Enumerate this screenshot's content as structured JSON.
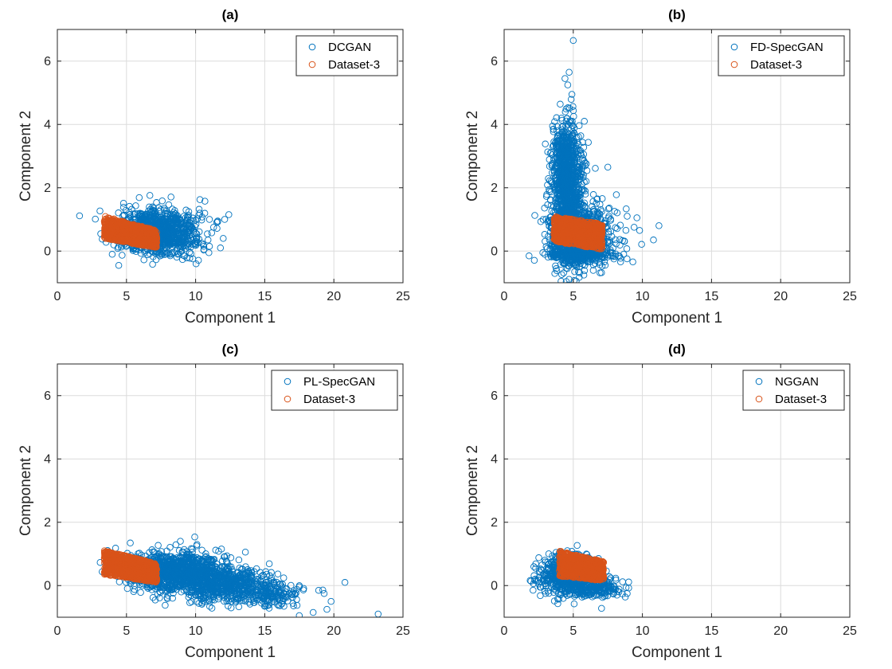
{
  "figure": {
    "colors": {
      "generated": "#0072BD",
      "real": "#D95319",
      "grid": "#DCDCDC",
      "axis": "#262626"
    }
  },
  "chart_data": [
    {
      "type": "scatter",
      "title": "(a)",
      "xlabel": "Component 1",
      "ylabel": "Component 2",
      "xlim": [
        0,
        25
      ],
      "ylim": [
        -1,
        7
      ],
      "xticks": [
        0,
        5,
        10,
        15,
        20,
        25
      ],
      "yticks": [
        0,
        2,
        4,
        6
      ],
      "grid": true,
      "legend_position": "top-right",
      "series": [
        {
          "name": "DCGAN",
          "role": "generated",
          "color": "#0072BD",
          "marker": "open-circle",
          "cloud": [
            {
              "x": 7.2,
              "y": 0.6,
              "sx": 1.4,
              "sy": 0.35,
              "n": 1100
            }
          ],
          "outliers": [
            [
              12.4,
              1.15
            ],
            [
              12.1,
              1.0
            ],
            [
              11.6,
              0.95
            ],
            [
              11.0,
              1.0
            ],
            [
              11.3,
              0.75
            ],
            [
              12.0,
              0.4
            ],
            [
              11.8,
              0.1
            ],
            [
              11.0,
              0.15
            ],
            [
              10.6,
              0.05
            ],
            [
              10.9,
              0.35
            ],
            [
              10.3,
              1.2
            ]
          ]
        },
        {
          "name": "Dataset-3",
          "role": "real",
          "color": "#D95319",
          "marker": "open-circle",
          "band": {
            "x0": 3.4,
            "x1": 7.2,
            "ytop0": 1.1,
            "ytop1": 0.65,
            "ybot0": 0.4,
            "ybot1": 0.1,
            "n": 900
          }
        }
      ]
    },
    {
      "type": "scatter",
      "title": "(b)",
      "xlabel": "Component 1",
      "ylabel": "Component 2",
      "xlim": [
        0,
        25
      ],
      "ylim": [
        -1,
        7
      ],
      "xticks": [
        0,
        5,
        10,
        15,
        20,
        25
      ],
      "yticks": [
        0,
        2,
        4,
        6
      ],
      "grid": true,
      "legend_position": "top-right",
      "series": [
        {
          "name": "FD-SpecGAN",
          "role": "generated",
          "color": "#0072BD",
          "marker": "open-circle",
          "cloud": [
            {
              "x": 4.6,
              "y": 1.6,
              "sx": 0.6,
              "sy": 1.0,
              "n": 900
            },
            {
              "x": 5.6,
              "y": 0.5,
              "sx": 1.1,
              "sy": 0.45,
              "n": 700
            },
            {
              "x": 4.5,
              "y": 3.0,
              "sx": 0.4,
              "sy": 0.6,
              "n": 300
            },
            {
              "x": 5.5,
              "y": -0.1,
              "sx": 1.2,
              "sy": 0.12,
              "n": 300
            }
          ],
          "outliers": [
            [
              5.0,
              6.65
            ],
            [
              4.7,
              5.65
            ],
            [
              4.4,
              5.45
            ],
            [
              4.6,
              5.25
            ],
            [
              4.9,
              4.95
            ],
            [
              5.8,
              4.1
            ],
            [
              7.5,
              2.65
            ],
            [
              9.6,
              1.05
            ],
            [
              9.4,
              0.75
            ],
            [
              11.2,
              0.8
            ],
            [
              10.8,
              0.35
            ],
            [
              9.8,
              0.65
            ],
            [
              8.9,
              1.1
            ]
          ]
        },
        {
          "name": "Dataset-3",
          "role": "real",
          "color": "#D95319",
          "marker": "open-circle",
          "band": {
            "x0": 3.6,
            "x1": 7.1,
            "ytop0": 1.1,
            "ytop1": 0.85,
            "ybot0": 0.3,
            "ybot1": 0.05,
            "n": 900
          }
        }
      ]
    },
    {
      "type": "scatter",
      "title": "(c)",
      "xlabel": "Component 1",
      "ylabel": "Component 2",
      "xlim": [
        0,
        25
      ],
      "ylim": [
        -1,
        7
      ],
      "xticks": [
        0,
        5,
        10,
        15,
        20,
        25
      ],
      "yticks": [
        0,
        2,
        4,
        6
      ],
      "grid": true,
      "legend_position": "top-right",
      "series": [
        {
          "name": "PL-SpecGAN",
          "role": "generated",
          "color": "#0072BD",
          "marker": "open-circle",
          "cloud": [
            {
              "x": 8.5,
              "y": 0.45,
              "sx": 1.8,
              "sy": 0.3,
              "n": 1000
            },
            {
              "x": 12.0,
              "y": 0.05,
              "sx": 1.8,
              "sy": 0.28,
              "n": 600
            },
            {
              "x": 15.5,
              "y": -0.3,
              "sx": 1.2,
              "sy": 0.2,
              "n": 150
            }
          ],
          "outliers": [
            [
              23.2,
              -0.9
            ],
            [
              20.8,
              0.1
            ],
            [
              19.8,
              -0.5
            ],
            [
              19.5,
              -0.75
            ],
            [
              18.5,
              -0.85
            ],
            [
              17.5,
              -0.95
            ],
            [
              18.9,
              -0.15
            ],
            [
              19.3,
              -0.25
            ],
            [
              8.9,
              1.4
            ]
          ]
        },
        {
          "name": "Dataset-3",
          "role": "real",
          "color": "#D95319",
          "marker": "open-circle",
          "band": {
            "x0": 3.4,
            "x1": 7.2,
            "ytop0": 1.1,
            "ytop1": 0.7,
            "ybot0": 0.35,
            "ybot1": 0.1,
            "n": 900
          }
        }
      ]
    },
    {
      "type": "scatter",
      "title": "(d)",
      "xlabel": "Component 1",
      "ylabel": "Component 2",
      "xlim": [
        0,
        25
      ],
      "ylim": [
        -1,
        7
      ],
      "xticks": [
        0,
        5,
        10,
        15,
        20,
        25
      ],
      "yticks": [
        0,
        2,
        4,
        6
      ],
      "grid": true,
      "legend_position": "top-right",
      "series": [
        {
          "name": "NGGAN",
          "role": "generated",
          "color": "#0072BD",
          "marker": "open-circle",
          "cloud": [
            {
              "x": 4.6,
              "y": 0.35,
              "sx": 0.9,
              "sy": 0.3,
              "n": 700
            },
            {
              "x": 6.5,
              "y": -0.05,
              "sx": 0.9,
              "sy": 0.15,
              "n": 200
            }
          ],
          "outliers": [
            [
              2.5,
              0.05
            ],
            [
              2.6,
              -0.05
            ],
            [
              8.9,
              -0.25
            ],
            [
              8.3,
              -0.2
            ],
            [
              7.9,
              -0.25
            ],
            [
              7.6,
              -0.15
            ],
            [
              3.0,
              -0.25
            ]
          ]
        },
        {
          "name": "Dataset-3",
          "role": "real",
          "color": "#D95319",
          "marker": "open-circle",
          "band": {
            "x0": 4.0,
            "x1": 7.2,
            "ytop0": 1.1,
            "ytop1": 0.75,
            "ybot0": 0.3,
            "ybot1": 0.15,
            "n": 800
          }
        }
      ]
    }
  ]
}
